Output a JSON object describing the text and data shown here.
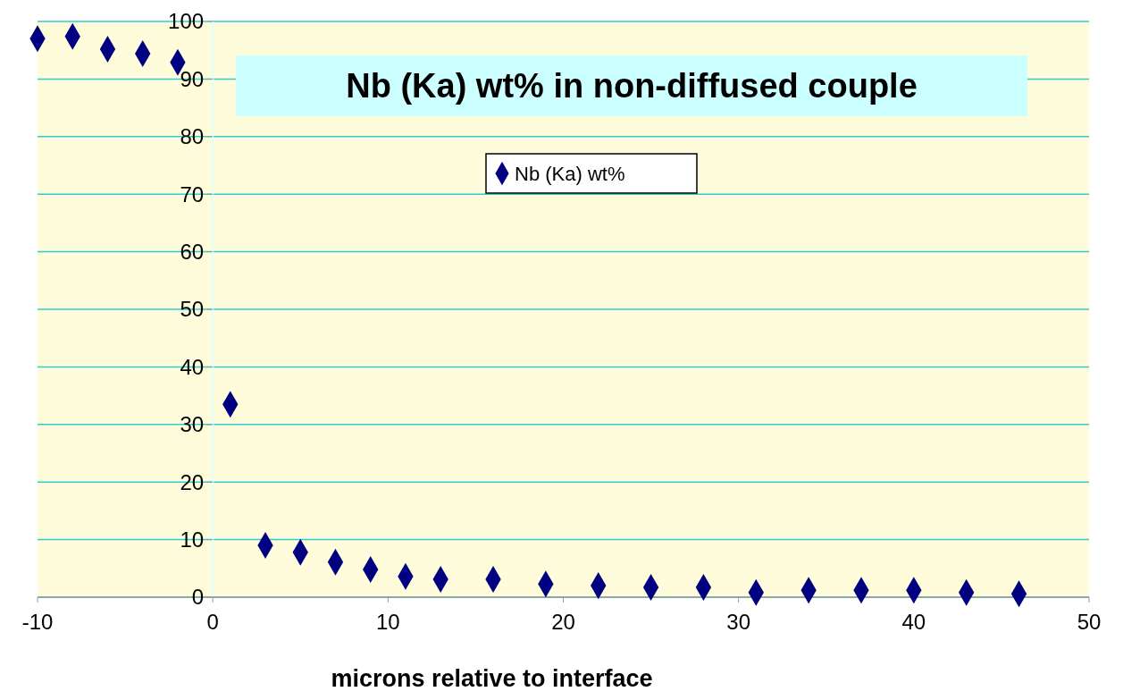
{
  "chart_data": {
    "type": "scatter",
    "title": "Nb (Ka) wt% in non-diffused couple",
    "xlabel": "microns relative to interface",
    "series": [
      {
        "name": "Nb (Ka) wt%",
        "color": "#000080",
        "x": [
          -10,
          -8,
          -6,
          -4,
          -2,
          1,
          3,
          5,
          7,
          9,
          11,
          13,
          16,
          19,
          22,
          25,
          28,
          31,
          34,
          37,
          40,
          43,
          46
        ],
        "values": [
          97,
          97.4,
          95.2,
          94.4,
          92.9,
          33.5,
          9,
          7.8,
          6.1,
          4.8,
          3.6,
          3.1,
          3.1,
          2.3,
          2,
          1.7,
          1.7,
          0.8,
          1.2,
          1.2,
          1.2,
          0.8,
          0.6
        ]
      }
    ],
    "xlim": [
      -10,
      50
    ],
    "xticks": [
      -10,
      0,
      10,
      20,
      30,
      40,
      50
    ],
    "ylim": [
      0,
      100
    ],
    "yticks": [
      0,
      10,
      20,
      30,
      40,
      50,
      60,
      70,
      80,
      90,
      100
    ],
    "grid": "y",
    "legend": "top",
    "marker": "diamond"
  }
}
